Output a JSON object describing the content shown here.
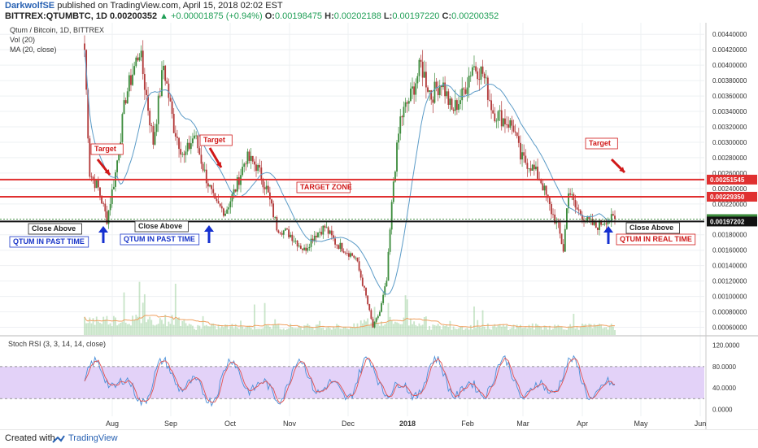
{
  "header": {
    "author": "DarkwolfSE",
    "published": "published on TradingView.com, April 15, 2018 02:02 EST",
    "symbol": "BITTREX:QTUMBTC, 1D",
    "last": "0.00200352",
    "change": "+0.00001875 (+0.94%)",
    "o_label": "O:",
    "o": "0.00198475",
    "h_label": "H:",
    "h": "0.00202188",
    "l_label": "L:",
    "l": "0.00197220",
    "c_label": "C:",
    "c": "0.00200352"
  },
  "footer": {
    "created_with": "Created with",
    "brand": "TradingView"
  },
  "colors": {
    "up": "#3d8c3d",
    "down": "#b23a3a",
    "ma": "#5b9bc7",
    "volume": "#9ccf9c",
    "volume_ma": "#f0a060",
    "red_line": "#e03030",
    "stoch_k": "#4a90d9",
    "stoch_d": "#e05050",
    "stoch_band": "#e3d2f8",
    "annotation_red": "#d01818",
    "annotation_blue": "#1a36c8",
    "arrow_blue": "#1530d0"
  },
  "chart_data": [
    {
      "type": "candlestick",
      "title": "Qtum / Bitcoin, 1D, BITTREX",
      "studies": [
        "Vol (20)",
        "MA (20, close)"
      ],
      "x": [
        "Aug",
        "Sep",
        "Oct",
        "Nov",
        "Dec",
        "2018",
        "Feb",
        "Mar",
        "Apr",
        "May",
        "Jun"
      ],
      "yticks": [
        "0.00060000",
        "0.00080000",
        "0.00100000",
        "0.00120000",
        "0.00140000",
        "0.00160000",
        "0.00180000",
        "0.00220000",
        "0.00240000",
        "0.00260000",
        "0.00280000",
        "0.00300000",
        "0.00320000",
        "0.00340000",
        "0.00360000",
        "0.00380000",
        "0.00400000",
        "0.00420000",
        "0.00440000"
      ],
      "ylim": [
        0.0005,
        0.00455
      ],
      "price_path": [
        [
          0,
          0.0042
        ],
        [
          3,
          0.0026
        ],
        [
          8,
          0.0024
        ],
        [
          13,
          0.002
        ],
        [
          18,
          0.0026
        ],
        [
          24,
          0.0036
        ],
        [
          32,
          0.0042
        ],
        [
          40,
          0.003
        ],
        [
          46,
          0.004
        ],
        [
          52,
          0.0032
        ],
        [
          58,
          0.0028
        ],
        [
          64,
          0.0031
        ],
        [
          70,
          0.0026
        ],
        [
          76,
          0.0022
        ],
        [
          82,
          0.0021
        ],
        [
          88,
          0.0024
        ],
        [
          94,
          0.0028
        ],
        [
          100,
          0.0027
        ],
        [
          106,
          0.0024
        ],
        [
          112,
          0.0019
        ],
        [
          120,
          0.0018
        ],
        [
          128,
          0.0016
        ],
        [
          134,
          0.0018
        ],
        [
          140,
          0.0019
        ],
        [
          146,
          0.0017
        ],
        [
          152,
          0.0016
        ],
        [
          158,
          0.0015
        ],
        [
          164,
          0.001
        ],
        [
          168,
          0.0006
        ],
        [
          172,
          0.0008
        ],
        [
          176,
          0.0012
        ],
        [
          180,
          0.0025
        ],
        [
          184,
          0.0033
        ],
        [
          190,
          0.0036
        ],
        [
          196,
          0.004
        ],
        [
          202,
          0.0036
        ],
        [
          208,
          0.0038
        ],
        [
          214,
          0.0034
        ],
        [
          220,
          0.0036
        ],
        [
          226,
          0.004
        ],
        [
          232,
          0.0039
        ],
        [
          238,
          0.0034
        ],
        [
          244,
          0.0033
        ],
        [
          250,
          0.0032
        ],
        [
          254,
          0.0028
        ],
        [
          260,
          0.0027
        ],
        [
          266,
          0.0025
        ],
        [
          272,
          0.0021
        ],
        [
          276,
          0.0019
        ],
        [
          279,
          0.0016
        ],
        [
          282,
          0.0024
        ],
        [
          286,
          0.00215
        ],
        [
          292,
          0.002
        ],
        [
          298,
          0.0019
        ],
        [
          304,
          0.002
        ],
        [
          308,
          0.00200352
        ]
      ],
      "series": [
        {
          "name": "",
          "type": "price_level",
          "value": 0.00200352
        },
        {
          "name": "",
          "type": "price_level",
          "value": 0.00197202
        },
        {
          "name": "",
          "type": "price_level",
          "value": 0.0022935
        },
        {
          "name": "",
          "type": "price_level",
          "value": 0.00251545
        }
      ],
      "annotations": {
        "target_label": "Target",
        "target_zone": "TARGET ZONE",
        "close_above": "Close Above",
        "qtum_past": "QTUM IN PAST TIME",
        "qtum_real": "QTUM IN REAL TIME"
      },
      "grid": true
    },
    {
      "type": "line",
      "title": "Stoch RSI (3, 3, 14, 14, close)",
      "yticks": [
        "0.0000",
        "40.0000",
        "80.0000",
        "120.0000"
      ],
      "ylim": [
        -10,
        130
      ],
      "band": [
        20,
        80
      ]
    }
  ]
}
